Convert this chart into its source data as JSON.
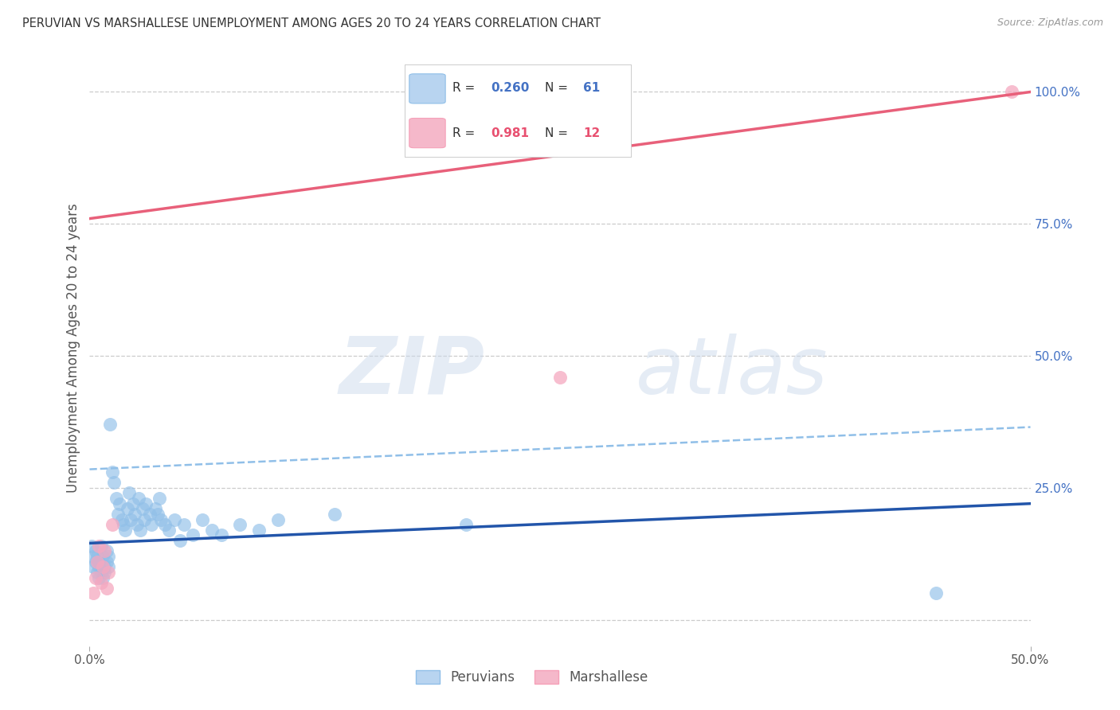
{
  "title": "PERUVIAN VS MARSHALLESE UNEMPLOYMENT AMONG AGES 20 TO 24 YEARS CORRELATION CHART",
  "source": "Source: ZipAtlas.com",
  "ylabel": "Unemployment Among Ages 20 to 24 years",
  "xlim": [
    0.0,
    0.5
  ],
  "ylim": [
    -0.05,
    1.08
  ],
  "xticks": [
    0.0,
    0.5
  ],
  "xtick_labels": [
    "0.0%",
    "50.0%"
  ],
  "yticks_right": [
    0.25,
    0.5,
    0.75,
    1.0
  ],
  "ytick_labels_right": [
    "25.0%",
    "50.0%",
    "75.0%",
    "100.0%"
  ],
  "yticks_grid": [
    0.0,
    0.25,
    0.5,
    0.75,
    1.0
  ],
  "peruvian_color": "#90bfe8",
  "marshallese_color": "#f5a8c0",
  "peruvian_line_color": "#2255aa",
  "marshallese_line_color": "#e8607a",
  "dashed_line_color": "#90bfe8",
  "R_peruvian": "0.260",
  "N_peruvian": "61",
  "R_marshallese": "0.981",
  "N_marshallese": "12",
  "legend_label_peruvian": "Peruvians",
  "legend_label_marshallese": "Marshallese",
  "watermark_zip": "ZIP",
  "watermark_atlas": "atlas",
  "background_color": "#ffffff",
  "grid_color": "#cccccc",
  "right_axis_color": "#4472c4",
  "peruvian_x": [
    0.001,
    0.002,
    0.002,
    0.003,
    0.003,
    0.004,
    0.004,
    0.005,
    0.005,
    0.005,
    0.006,
    0.006,
    0.007,
    0.007,
    0.008,
    0.008,
    0.009,
    0.009,
    0.01,
    0.01,
    0.011,
    0.012,
    0.013,
    0.014,
    0.015,
    0.016,
    0.017,
    0.018,
    0.019,
    0.02,
    0.021,
    0.022,
    0.023,
    0.024,
    0.025,
    0.026,
    0.027,
    0.028,
    0.029,
    0.03,
    0.032,
    0.033,
    0.035,
    0.036,
    0.037,
    0.038,
    0.04,
    0.042,
    0.045,
    0.048,
    0.05,
    0.055,
    0.06,
    0.065,
    0.07,
    0.08,
    0.09,
    0.1,
    0.13,
    0.2,
    0.45
  ],
  "peruvian_y": [
    0.14,
    0.12,
    0.1,
    0.13,
    0.11,
    0.09,
    0.12,
    0.1,
    0.08,
    0.11,
    0.09,
    0.14,
    0.08,
    0.12,
    0.1,
    0.09,
    0.11,
    0.13,
    0.1,
    0.12,
    0.37,
    0.28,
    0.26,
    0.23,
    0.2,
    0.22,
    0.19,
    0.18,
    0.17,
    0.21,
    0.24,
    0.19,
    0.22,
    0.2,
    0.18,
    0.23,
    0.17,
    0.21,
    0.19,
    0.22,
    0.2,
    0.18,
    0.21,
    0.2,
    0.23,
    0.19,
    0.18,
    0.17,
    0.19,
    0.15,
    0.18,
    0.16,
    0.19,
    0.17,
    0.16,
    0.18,
    0.17,
    0.19,
    0.2,
    0.18,
    0.05
  ],
  "marshallese_x": [
    0.002,
    0.003,
    0.004,
    0.005,
    0.006,
    0.007,
    0.008,
    0.009,
    0.01,
    0.012,
    0.25,
    0.49
  ],
  "marshallese_y": [
    0.05,
    0.08,
    0.11,
    0.14,
    0.07,
    0.1,
    0.13,
    0.06,
    0.09,
    0.18,
    0.46,
    1.0
  ],
  "peruvian_trendline_x": [
    0.0,
    0.5
  ],
  "peruvian_trendline_y": [
    0.145,
    0.22
  ],
  "marshallese_trendline_x": [
    0.0,
    0.5
  ],
  "marshallese_trendline_y": [
    0.76,
    1.0
  ],
  "dashed_trendline_x": [
    0.0,
    0.5
  ],
  "dashed_trendline_y": [
    0.285,
    0.365
  ]
}
